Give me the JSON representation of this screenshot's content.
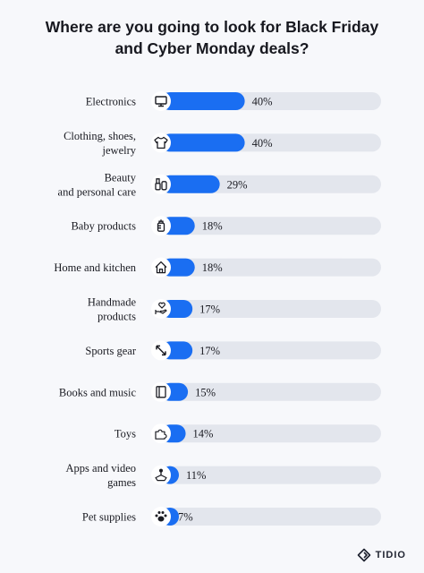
{
  "title": {
    "line1": "Where are you going to look for Black Friday",
    "line2": "and Cyber Monday deals?"
  },
  "chart_data": {
    "type": "bar",
    "orientation": "horizontal",
    "categories": [
      "Electronics",
      "Clothing, shoes, jewelry",
      "Beauty and personal care",
      "Baby products",
      "Home and kitchen",
      "Handmade products",
      "Sports gear",
      "Books and music",
      "Toys",
      "Apps and video games",
      "Pet supplies"
    ],
    "category_lines": [
      [
        "Electronics"
      ],
      [
        "Clothing, shoes,",
        "jewelry"
      ],
      [
        "Beauty",
        "and personal care"
      ],
      [
        "Baby products"
      ],
      [
        "Home and kitchen"
      ],
      [
        "Handmade",
        "products"
      ],
      [
        "Sports gear"
      ],
      [
        "Books and music"
      ],
      [
        "Toys"
      ],
      [
        "Apps and video",
        "games"
      ],
      [
        "Pet supplies"
      ]
    ],
    "values": [
      40,
      40,
      29,
      18,
      18,
      17,
      17,
      15,
      14,
      11,
      7
    ],
    "value_labels": [
      "40%",
      "40%",
      "29%",
      "18%",
      "18%",
      "17%",
      "17%",
      "15%",
      "14%",
      "11%",
      "7%"
    ],
    "icons": [
      "monitor-icon",
      "tshirt-icon",
      "cosmetics-icon",
      "baby-bottle-icon",
      "house-icon",
      "hand-heart-icon",
      "resize-arrows-icon",
      "book-icon",
      "puzzle-icon",
      "joystick-icon",
      "paw-icon"
    ],
    "xlim": [
      0,
      100
    ],
    "colors": {
      "bar": "#1a6ef2",
      "track": "#e3e6ed",
      "icon_bg": "#ffffff"
    }
  },
  "brand": {
    "name": "TIDIO"
  }
}
